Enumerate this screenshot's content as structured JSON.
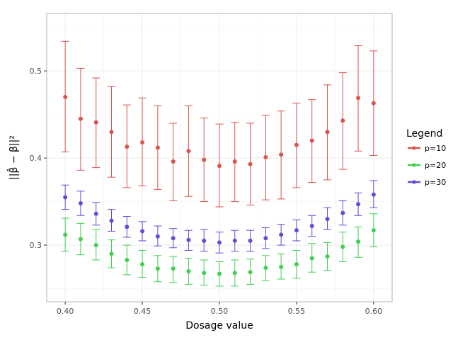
{
  "chart_data": {
    "type": "scatter",
    "title": "",
    "xlabel": "Dosage value",
    "ylabel": "||β̂ − β||²",
    "xlim": [
      0.388,
      0.612
    ],
    "ylim": [
      0.235,
      0.566
    ],
    "xticks": [
      {
        "value": 0.4,
        "label": "0.40"
      },
      {
        "value": 0.45,
        "label": "0.45"
      },
      {
        "value": 0.5,
        "label": "0.50"
      },
      {
        "value": 0.55,
        "label": "0.55"
      },
      {
        "value": 0.6,
        "label": "0.60"
      }
    ],
    "yticks": [
      {
        "value": 0.3,
        "label": "0.3"
      },
      {
        "value": 0.4,
        "label": "0.4"
      },
      {
        "value": 0.5,
        "label": "0.5"
      }
    ],
    "grid": true,
    "legend_position": "right",
    "legend_title": "Legend",
    "x": [
      0.4,
      0.41,
      0.42,
      0.43,
      0.44,
      0.45,
      0.46,
      0.47,
      0.48,
      0.49,
      0.5,
      0.51,
      0.52,
      0.53,
      0.54,
      0.55,
      0.56,
      0.57,
      0.58,
      0.59,
      0.6
    ],
    "series": [
      {
        "name": "p=10",
        "color": "#d9534f",
        "values": [
          0.47,
          0.445,
          0.441,
          0.43,
          0.413,
          0.418,
          0.412,
          0.396,
          0.408,
          0.398,
          0.391,
          0.396,
          0.393,
          0.401,
          0.404,
          0.415,
          0.42,
          0.43,
          0.443,
          0.469,
          0.463
        ],
        "lower": [
          0.407,
          0.386,
          0.389,
          0.378,
          0.366,
          0.368,
          0.364,
          0.351,
          0.356,
          0.35,
          0.344,
          0.35,
          0.346,
          0.352,
          0.353,
          0.366,
          0.372,
          0.375,
          0.387,
          0.408,
          0.403
        ],
        "upper": [
          0.534,
          0.503,
          0.492,
          0.482,
          0.461,
          0.469,
          0.46,
          0.44,
          0.46,
          0.446,
          0.439,
          0.441,
          0.44,
          0.449,
          0.454,
          0.463,
          0.467,
          0.484,
          0.498,
          0.529,
          0.523
        ]
      },
      {
        "name": "p=20",
        "color": "#3fcf4f",
        "values": [
          0.312,
          0.307,
          0.3,
          0.29,
          0.283,
          0.278,
          0.273,
          0.273,
          0.27,
          0.268,
          0.267,
          0.268,
          0.269,
          0.274,
          0.275,
          0.278,
          0.285,
          0.287,
          0.298,
          0.304,
          0.317
        ],
        "lower": [
          0.293,
          0.289,
          0.283,
          0.274,
          0.266,
          0.263,
          0.258,
          0.257,
          0.255,
          0.254,
          0.253,
          0.253,
          0.255,
          0.259,
          0.261,
          0.262,
          0.269,
          0.271,
          0.281,
          0.286,
          0.298
        ],
        "upper": [
          0.331,
          0.325,
          0.318,
          0.306,
          0.3,
          0.294,
          0.288,
          0.287,
          0.285,
          0.283,
          0.281,
          0.283,
          0.284,
          0.288,
          0.29,
          0.294,
          0.302,
          0.303,
          0.315,
          0.321,
          0.336
        ]
      },
      {
        "name": "p=30",
        "color": "#5a4fd6",
        "values": [
          0.355,
          0.348,
          0.336,
          0.328,
          0.321,
          0.316,
          0.31,
          0.308,
          0.306,
          0.305,
          0.303,
          0.305,
          0.305,
          0.308,
          0.312,
          0.317,
          0.322,
          0.33,
          0.337,
          0.347,
          0.358
        ],
        "lower": [
          0.341,
          0.334,
          0.323,
          0.316,
          0.309,
          0.305,
          0.299,
          0.297,
          0.294,
          0.293,
          0.291,
          0.293,
          0.293,
          0.296,
          0.3,
          0.305,
          0.31,
          0.318,
          0.323,
          0.334,
          0.343
        ],
        "upper": [
          0.369,
          0.362,
          0.349,
          0.341,
          0.333,
          0.327,
          0.322,
          0.319,
          0.317,
          0.318,
          0.315,
          0.317,
          0.317,
          0.32,
          0.324,
          0.329,
          0.334,
          0.343,
          0.351,
          0.36,
          0.374
        ]
      }
    ]
  }
}
